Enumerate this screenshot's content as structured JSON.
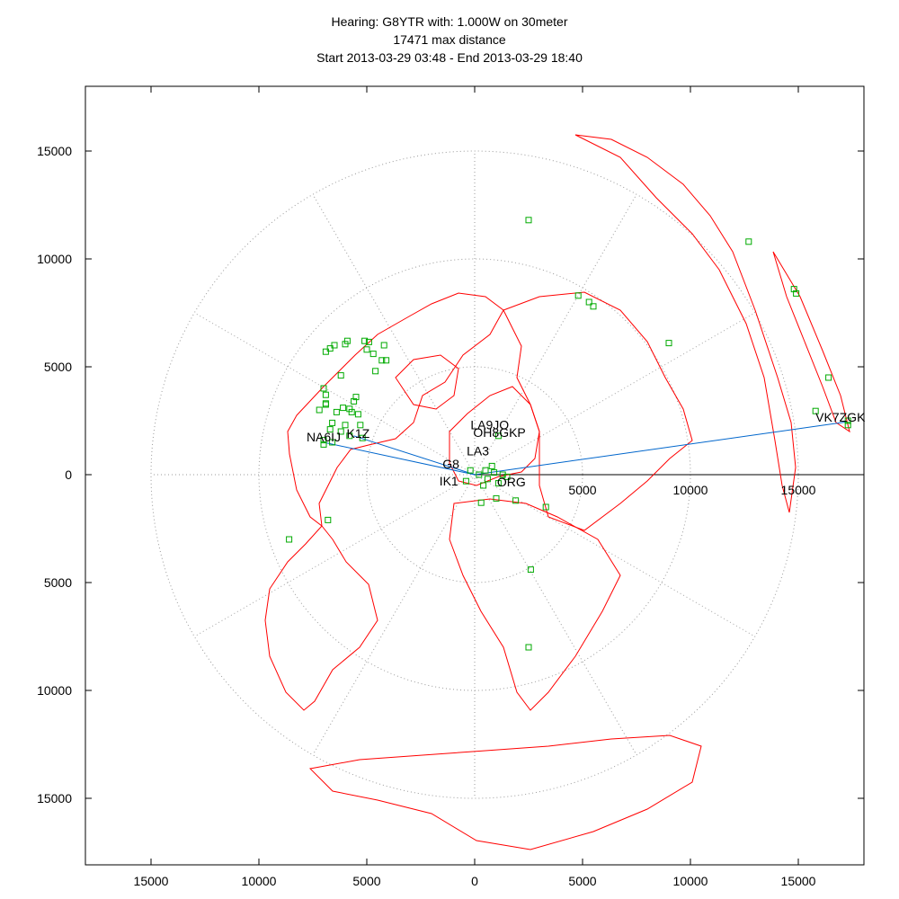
{
  "title": {
    "line1": "Hearing: G8YTR with: 1.000W on 30meter",
    "line2": "17471 max distance",
    "line3": "Start 2013-03-29 03:48 - End 2013-03-29 18:40"
  },
  "colors": {
    "coastline": "#ff0000",
    "station": "#00aa00",
    "path": "#0066cc",
    "grid": "#999999",
    "axis": "#000000"
  },
  "chart_data": {
    "type": "scatter",
    "projection": "azimuthal-equidistant",
    "xlim": [
      -18000,
      18000
    ],
    "ylim": [
      -18000,
      18000
    ],
    "x_ticks": [
      "15000",
      "10000",
      "5000",
      "0",
      "5000",
      "10000",
      "15000"
    ],
    "y_ticks": [
      "15000",
      "10000",
      "5000",
      "0",
      "5000",
      "10000",
      "15000"
    ],
    "x_tick_values": [
      -15000,
      -10000,
      -5000,
      0,
      5000,
      10000,
      15000
    ],
    "y_tick_values": [
      15000,
      10000,
      5000,
      0,
      -5000,
      -10000,
      -15000
    ],
    "range_rings_km": [
      5000,
      10000,
      15000
    ],
    "inner_axis_labels": [
      "5000",
      "10000",
      "15000"
    ],
    "inner_axis_values": [
      5000,
      10000,
      15000
    ],
    "spoke_angles_deg": [
      0,
      30,
      60,
      90,
      120,
      150,
      180,
      210,
      240,
      270,
      300,
      330
    ],
    "callsign_labels": [
      {
        "text": "VK7ZGK",
        "x": 16950,
        "y": 2450
      },
      {
        "text": "NA6IJ",
        "x": -7000,
        "y": 1550
      },
      {
        "text": "K1Z",
        "x": -5400,
        "y": 1700
      },
      {
        "text": "LA9JO",
        "x": 700,
        "y": 2100
      },
      {
        "text": "OH8GKP",
        "x": 1150,
        "y": 1750
      },
      {
        "text": "LA3",
        "x": 150,
        "y": 900
      },
      {
        "text": "G8",
        "x": -1100,
        "y": 300
      },
      {
        "text": "IK1",
        "x": -1200,
        "y": -500
      },
      {
        "text": "ORG",
        "x": 1700,
        "y": -550
      }
    ],
    "paths": [
      {
        "to": "VK7ZGK",
        "x": 17250,
        "y": 2450
      },
      {
        "to": "NA6IJ",
        "x": -7000,
        "y": 1500
      },
      {
        "to": "K1Z",
        "x": -5600,
        "y": 1800
      }
    ],
    "stations": [
      [
        2500,
        11800
      ],
      [
        12700,
        10800
      ],
      [
        14800,
        8600
      ],
      [
        14900,
        8400
      ],
      [
        4800,
        8300
      ],
      [
        5300,
        8000
      ],
      [
        5500,
        7800
      ],
      [
        9000,
        6100
      ],
      [
        16400,
        4500
      ],
      [
        15800,
        2950
      ],
      [
        17300,
        2500
      ],
      [
        17300,
        2300
      ],
      [
        -7200,
        3000
      ],
      [
        -6900,
        5700
      ],
      [
        -6700,
        5850
      ],
      [
        -6500,
        6000
      ],
      [
        -5900,
        6200
      ],
      [
        -6000,
        6050
      ],
      [
        -5100,
        6200
      ],
      [
        -4900,
        6150
      ],
      [
        -4200,
        6000
      ],
      [
        -5000,
        5800
      ],
      [
        -4700,
        5600
      ],
      [
        -4300,
        5300
      ],
      [
        -4100,
        5300
      ],
      [
        -4600,
        4800
      ],
      [
        -6200,
        4600
      ],
      [
        -7000,
        4000
      ],
      [
        -6900,
        3700
      ],
      [
        -6900,
        3300
      ],
      [
        -6900,
        3250
      ],
      [
        -5500,
        3600
      ],
      [
        -5600,
        3400
      ],
      [
        -6100,
        3100
      ],
      [
        -5800,
        3050
      ],
      [
        -5700,
        2900
      ],
      [
        -6400,
        2900
      ],
      [
        -5400,
        2800
      ],
      [
        -6600,
        2400
      ],
      [
        -6000,
        2300
      ],
      [
        -5300,
        2300
      ],
      [
        -6700,
        2100
      ],
      [
        -6200,
        2000
      ],
      [
        -5800,
        1800
      ],
      [
        -7000,
        1600
      ],
      [
        -7000,
        1400
      ],
      [
        -6600,
        1500
      ],
      [
        -5200,
        1700
      ],
      [
        -6800,
        -2100
      ],
      [
        -8600,
        -3000
      ],
      [
        2600,
        -4400
      ],
      [
        2500,
        -8000
      ],
      [
        1000,
        -1100
      ],
      [
        300,
        -1300
      ],
      [
        1900,
        -1200
      ],
      [
        3300,
        -1500
      ],
      [
        1100,
        1800
      ],
      [
        800,
        400
      ],
      [
        500,
        200
      ],
      [
        200,
        0
      ],
      [
        -200,
        200
      ],
      [
        600,
        -200
      ],
      [
        1300,
        0
      ],
      [
        900,
        100
      ],
      [
        400,
        -500
      ],
      [
        1100,
        -400
      ],
      [
        -400,
        -300
      ],
      [
        1500,
        -100
      ]
    ],
    "cluster_labels": [
      {
        "text": "LA9JO",
        "x": 500,
        "y": 2100
      },
      {
        "text": "OH8GKP",
        "x": 1100,
        "y": 1750
      },
      {
        "text": "LA3",
        "x": 200,
        "y": 850
      },
      {
        "text": "G8",
        "x": -1100,
        "y": 300
      },
      {
        "text": "IK1",
        "x": -1200,
        "y": -550
      },
      {
        "text": "ORG",
        "x": 1800,
        "y": -550
      }
    ]
  }
}
